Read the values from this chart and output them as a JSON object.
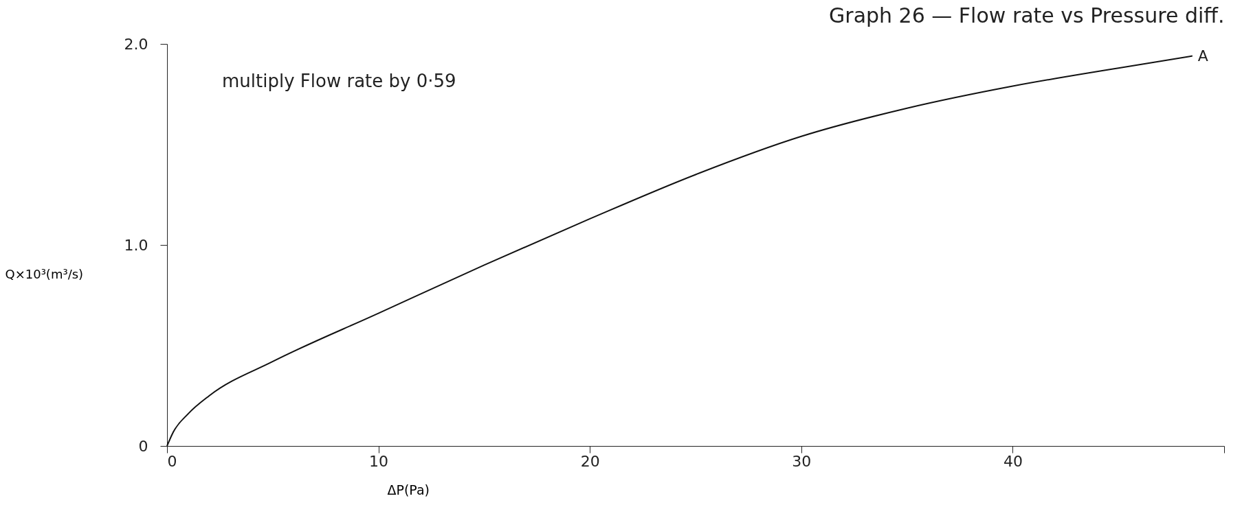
{
  "chart_data": {
    "type": "line",
    "title": "Graph 26 — Flow rate vs Pressure diff.",
    "xlabel": "ΔP(Pa)",
    "ylabel": "Q×10³(m³/s)",
    "x": [
      0,
      0.3,
      1,
      2,
      5,
      10,
      15,
      20,
      25,
      30,
      35,
      40,
      45,
      48.5
    ],
    "series": [
      {
        "color": "#111111",
        "values": [
          0,
          0.07,
          0.16,
          0.25,
          0.42,
          0.66,
          0.9,
          1.13,
          1.35,
          1.54,
          1.68,
          1.79,
          1.88,
          1.94
        ]
      }
    ],
    "xlim": [
      0,
      50
    ],
    "xticks": [
      0,
      10,
      20,
      30,
      40,
      {
        "value": 50,
        "label": null
      }
    ],
    "ylim": [
      0,
      2.0
    ],
    "yticks": [
      0,
      {
        "value": 1.0,
        "label": "1.0"
      },
      {
        "value": 2.0,
        "label": "2.0"
      }
    ],
    "grid": false,
    "marker": "none",
    "line_style": "solid",
    "annotations": [
      "multiply Flow rate by 0·59",
      {
        "text": "A",
        "x": 48.5,
        "y": 1.94
      }
    ]
  }
}
